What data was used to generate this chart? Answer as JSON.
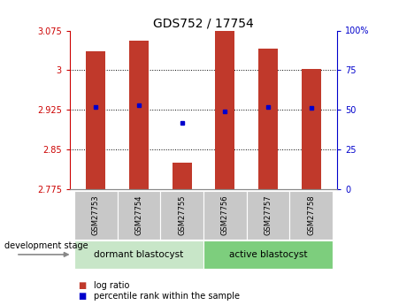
{
  "title": "GDS752 / 17754",
  "samples": [
    "GSM27753",
    "GSM27754",
    "GSM27755",
    "GSM27756",
    "GSM27757",
    "GSM27758"
  ],
  "bar_tops": [
    3.035,
    3.055,
    2.825,
    3.075,
    3.04,
    3.002
  ],
  "bar_base": 2.775,
  "percentile_ranks": [
    52,
    53,
    42,
    49,
    52,
    51
  ],
  "ylim_left": [
    2.775,
    3.075
  ],
  "ylim_right": [
    0,
    100
  ],
  "yticks_left": [
    2.775,
    2.85,
    2.925,
    3.0,
    3.075
  ],
  "yticks_right": [
    0,
    25,
    50,
    75,
    100
  ],
  "yticklabels_left": [
    "2.775",
    "2.85",
    "2.925",
    "3",
    "3.075"
  ],
  "yticklabels_right": [
    "0",
    "25",
    "50",
    "75",
    "100%"
  ],
  "bar_color": "#c0392b",
  "dot_color": "#0000cc",
  "group1_label": "dormant blastocyst",
  "group2_label": "active blastocyst",
  "group1_color": "#c8e6c8",
  "group2_color": "#7dce7d",
  "sample_box_color": "#c8c8c8",
  "legend_labels": [
    "log ratio",
    "percentile rank within the sample"
  ],
  "dev_stage_label": "development stage",
  "left_axis_color": "#cc0000",
  "right_axis_color": "#0000cc",
  "gridline_vals": [
    2.85,
    2.925,
    3.0
  ],
  "bar_width": 0.45
}
